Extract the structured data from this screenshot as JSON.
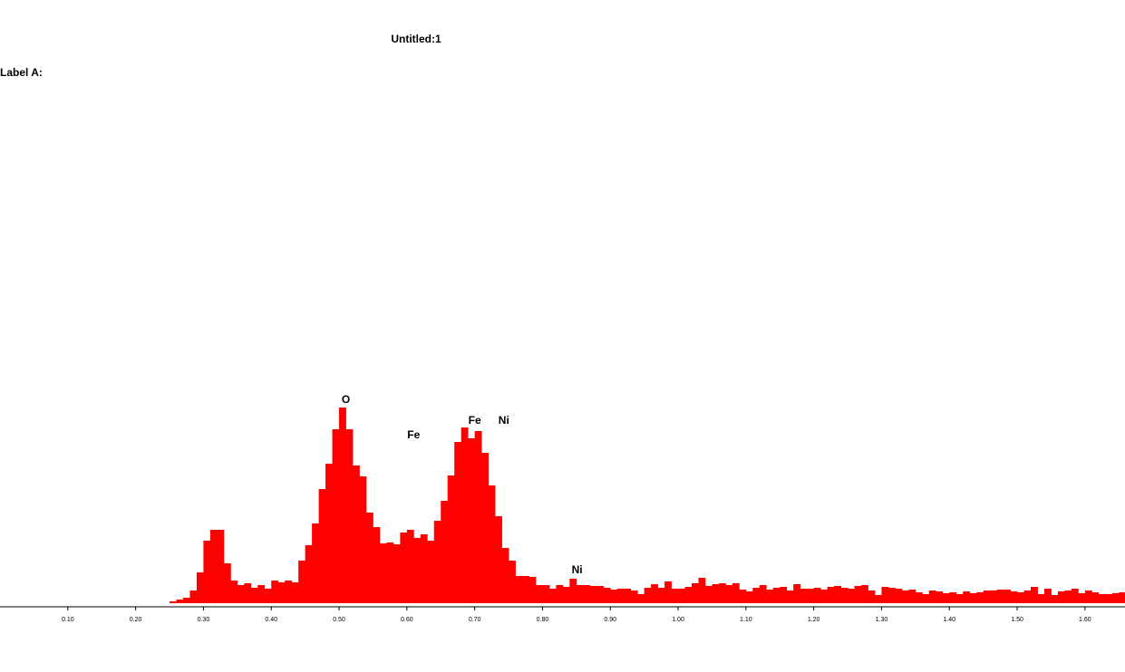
{
  "chart_data": {
    "type": "histogram",
    "title": "Untitled:1",
    "subtitle": "Label A:",
    "color": "#ff0000",
    "bins": [
      0.25,
      0.26,
      0.27,
      0.28,
      0.29,
      0.3,
      0.31,
      0.32,
      0.33,
      0.34,
      0.35,
      0.36,
      0.37,
      0.38,
      0.39,
      0.4,
      0.41,
      0.42,
      0.43,
      0.44,
      0.45,
      0.46,
      0.47,
      0.48,
      0.49,
      0.5,
      0.51,
      0.52,
      0.53,
      0.54,
      0.55,
      0.56,
      0.57,
      0.58,
      0.59,
      0.6,
      0.61,
      0.62,
      0.63,
      0.64,
      0.65,
      0.66,
      0.67,
      0.68,
      0.69,
      0.7,
      0.71,
      0.72,
      0.73,
      0.74,
      0.75,
      0.76,
      0.77,
      0.78,
      0.79,
      0.8,
      0.81,
      0.82,
      0.83,
      0.84,
      0.85,
      0.86,
      0.87,
      0.88,
      0.89,
      0.9,
      0.91,
      0.92,
      0.93,
      0.94,
      0.95,
      0.96,
      0.97,
      0.98,
      0.99,
      1.0,
      1.01,
      1.02,
      1.03,
      1.04,
      1.05,
      1.06,
      1.07,
      1.08,
      1.09,
      1.1,
      1.11,
      1.12,
      1.13,
      1.14,
      1.15,
      1.16,
      1.17,
      1.18,
      1.19,
      1.2,
      1.21,
      1.22,
      1.23,
      1.24,
      1.25,
      1.26,
      1.27,
      1.28,
      1.29,
      1.3,
      1.31,
      1.32,
      1.33,
      1.34,
      1.35,
      1.36,
      1.37,
      1.38,
      1.39,
      1.4,
      1.41,
      1.42,
      1.43,
      1.44,
      1.45,
      1.46,
      1.47,
      1.48,
      1.49,
      1.5,
      1.51,
      1.52,
      1.53,
      1.54,
      1.55,
      1.56,
      1.57,
      1.58,
      1.59,
      1.6,
      1.61,
      1.62,
      1.63,
      1.64,
      1.65,
      1.66
    ],
    "values": [
      2,
      4,
      6,
      14,
      34,
      69,
      81,
      81,
      44,
      25,
      20,
      22,
      17,
      20,
      16,
      25,
      23,
      25,
      23,
      47,
      64,
      88,
      126,
      154,
      192,
      216,
      192,
      152,
      140,
      100,
      84,
      66,
      67,
      65,
      78,
      81,
      72,
      76,
      69,
      91,
      113,
      141,
      178,
      194,
      182,
      190,
      166,
      130,
      96,
      61,
      47,
      30,
      30,
      29,
      20,
      20,
      16,
      20,
      18,
      27,
      20,
      20,
      19,
      19,
      17,
      15,
      16,
      16,
      14,
      10,
      17,
      21,
      17,
      24,
      16,
      16,
      18,
      22,
      28,
      19,
      21,
      22,
      20,
      22,
      15,
      13,
      17,
      20,
      15,
      17,
      18,
      14,
      21,
      16,
      16,
      17,
      15,
      18,
      19,
      17,
      16,
      19,
      20,
      14,
      9,
      18,
      17,
      16,
      14,
      15,
      12,
      10,
      14,
      13,
      11,
      12,
      10,
      13,
      11,
      12,
      14,
      14,
      15,
      15,
      13,
      12,
      14,
      18,
      10,
      16,
      9,
      13,
      14,
      16,
      11,
      14,
      12,
      10,
      10,
      11,
      12
    ],
    "xlim": [
      0,
      1.659
    ],
    "ylim": [
      0,
      600
    ],
    "xticks": [
      {
        "value": 0.1,
        "label": "0.10"
      },
      {
        "value": 0.2,
        "label": "0.20"
      },
      {
        "value": 0.3,
        "label": "0.30"
      },
      {
        "value": 0.4,
        "label": "0.40"
      },
      {
        "value": 0.5,
        "label": "0.50"
      },
      {
        "value": 0.6,
        "label": "0.60"
      },
      {
        "value": 0.7,
        "label": "0.70"
      },
      {
        "value": 0.8,
        "label": "0.80"
      },
      {
        "value": 0.9,
        "label": "0.90"
      },
      {
        "value": 1.0,
        "label": "1.00"
      },
      {
        "value": 1.1,
        "label": "1.10"
      },
      {
        "value": 1.2,
        "label": "1.20"
      },
      {
        "value": 1.3,
        "label": "1.30"
      },
      {
        "value": 1.4,
        "label": "1.40"
      },
      {
        "value": 1.5,
        "label": "1.50"
      },
      {
        "value": 1.6,
        "label": "1.60"
      }
    ],
    "annotations": [
      {
        "text": "O",
        "x": 0.51,
        "y": 224
      },
      {
        "text": "Fe",
        "x": 0.61,
        "y": 185
      },
      {
        "text": "Fe",
        "x": 0.7,
        "y": 201
      },
      {
        "text": "Ni",
        "x": 0.743,
        "y": 201
      },
      {
        "text": "Ni",
        "x": 0.851,
        "y": 36
      }
    ]
  }
}
